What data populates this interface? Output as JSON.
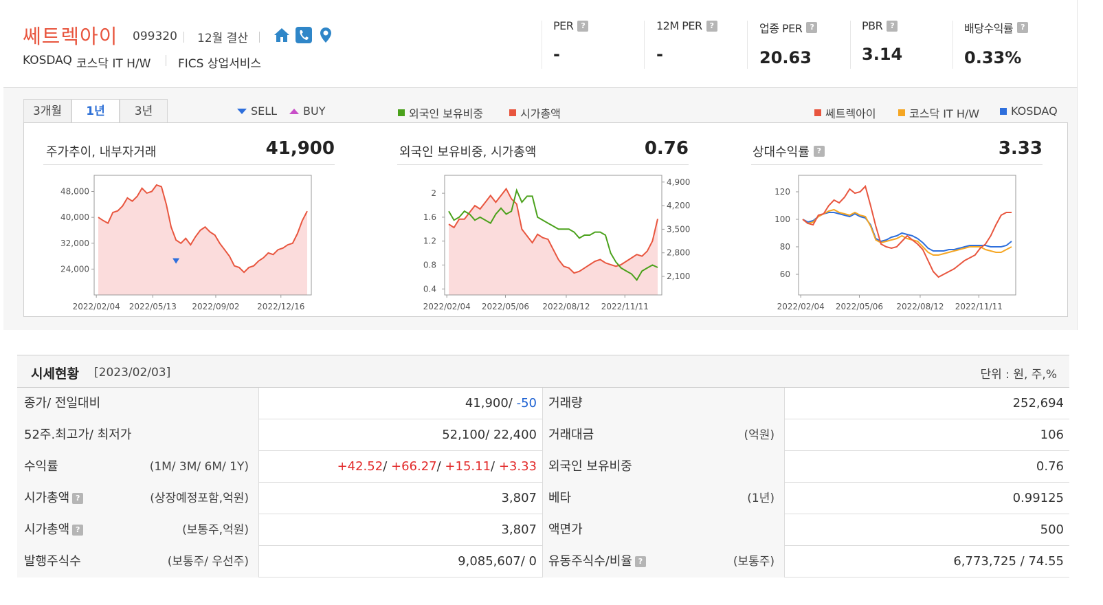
{
  "header": {
    "company_name": "쎄트렉아이",
    "code": "099320",
    "fiscal": "12월 결산",
    "market": "KOSDAQ",
    "sector": "코스닥 IT H/W",
    "fics": "FICS 상업서비스",
    "icons": [
      "home-icon",
      "phone-icon",
      "location-icon"
    ],
    "metrics": [
      {
        "label": "PER",
        "value": "-"
      },
      {
        "label": "12M PER",
        "value": "-"
      },
      {
        "label": "업종 PER",
        "value": "20.63"
      },
      {
        "label": "PBR",
        "value": "3.14"
      },
      {
        "label": "배당수익률",
        "value": "0.33%"
      }
    ]
  },
  "tabs": {
    "t3m": "3개월",
    "t1y": "1년",
    "t3y": "3년",
    "selected": "1년"
  },
  "legends": {
    "sell": "SELL",
    "buy": "BUY",
    "foreign": "외국인 보유비중",
    "mcap": "시가총액",
    "s1": "쎄트렉아이",
    "s2": "코스닥 IT H/W",
    "s3": "KOSDAQ"
  },
  "colors": {
    "red": "#e8553e",
    "green": "#4aa11b",
    "orange": "#f5a623",
    "blue": "#2e6fdc",
    "accent_blue": "#2c6fd6"
  },
  "panels": {
    "price": {
      "title_bold": "주가추이",
      "title_rest": ", 내부자거래",
      "value": "41,900"
    },
    "foreign": {
      "title_bold": "외국인 보유비중",
      "title_rest": ", 시가총액",
      "value": "0.76"
    },
    "relative": {
      "title": "상대수익률",
      "value": "3.33"
    }
  },
  "chart_data": [
    {
      "type": "area",
      "title": "주가추이, 내부자거래",
      "x_ticks": [
        "2022/02/04",
        "2022/05/13",
        "2022/09/02",
        "2022/12/16"
      ],
      "y_ticks": [
        "24,000",
        "32,000",
        "40,000",
        "48,000"
      ],
      "ylim": [
        16000,
        53000
      ],
      "series": [
        {
          "name": "쎄트렉아이",
          "values": [
            40000,
            39000,
            38200,
            41500,
            42000,
            43500,
            46000,
            45000,
            46500,
            49000,
            47500,
            48000,
            50000,
            49500,
            44000,
            37000,
            33000,
            32000,
            33500,
            31500,
            34000,
            36000,
            37000,
            35500,
            34500,
            32000,
            30000,
            28000,
            25000,
            24500,
            23000,
            24500,
            25000,
            26500,
            27500,
            29000,
            28500,
            30000,
            30500,
            31500,
            32000,
            35000,
            39000,
            41900
          ]
        }
      ],
      "markers": [
        {
          "type": "SELL",
          "index": 16,
          "value": 26500
        }
      ]
    },
    {
      "type": "line",
      "title": "외국인 보유비중, 시가총액",
      "x_ticks": [
        "2022/02/04",
        "2022/05/06",
        "2022/08/12",
        "2022/11/11"
      ],
      "y_ticks_left": [
        "0.4",
        "0.8",
        "1.2",
        "1.6",
        "2"
      ],
      "y_ticks_right": [
        "2,100",
        "2,800",
        "3,500",
        "4,200",
        "4,900"
      ],
      "ylim_left": [
        0.3,
        2.3
      ],
      "ylim_right": [
        1550,
        5100
      ],
      "series": [
        {
          "name": "외국인 보유비중",
          "axis": "left",
          "values": [
            1.7,
            1.55,
            1.6,
            1.7,
            1.65,
            1.55,
            1.6,
            1.55,
            1.5,
            1.65,
            1.75,
            1.65,
            1.7,
            2.05,
            1.85,
            1.95,
            1.95,
            1.6,
            1.55,
            1.5,
            1.45,
            1.4,
            1.4,
            1.4,
            1.35,
            1.25,
            1.3,
            1.3,
            1.35,
            1.35,
            1.3,
            1.0,
            0.85,
            0.75,
            0.7,
            0.65,
            0.55,
            0.7,
            0.75,
            0.8,
            0.76
          ]
        },
        {
          "name": "시가총액",
          "axis": "right",
          "values": [
            3650,
            3550,
            3800,
            3800,
            4000,
            4200,
            4100,
            4300,
            4500,
            4300,
            4500,
            4700,
            4400,
            4250,
            3500,
            3300,
            3100,
            3350,
            3250,
            3200,
            2900,
            2600,
            2400,
            2350,
            2200,
            2250,
            2350,
            2450,
            2550,
            2600,
            2500,
            2450,
            2400,
            2450,
            2550,
            2650,
            2750,
            2700,
            2850,
            3150,
            3807
          ]
        }
      ]
    },
    {
      "type": "line",
      "title": "상대수익률",
      "x_ticks": [
        "2022/02/04",
        "2022/05/06",
        "2022/08/12",
        "2022/11/11"
      ],
      "y_ticks": [
        "60",
        "80",
        "100",
        "120"
      ],
      "ylim": [
        45,
        132
      ],
      "series": [
        {
          "name": "쎄트렉아이",
          "values": [
            100,
            97,
            96,
            103,
            104,
            110,
            114,
            112,
            116,
            122,
            119,
            120,
            124,
            110,
            95,
            82,
            80,
            79,
            80,
            84,
            88,
            85,
            82,
            78,
            70,
            62,
            58,
            60,
            62,
            64,
            67,
            70,
            72,
            74,
            79,
            82,
            88,
            96,
            103,
            105,
            105
          ]
        },
        {
          "name": "코스닥 IT H/W",
          "values": [
            100,
            97,
            98,
            102,
            104,
            106,
            107,
            105,
            104,
            103,
            105,
            103,
            102,
            95,
            85,
            83,
            84,
            85,
            86,
            88,
            86,
            85,
            84,
            80,
            76,
            74,
            74,
            75,
            76,
            77,
            78,
            79,
            80,
            80,
            80,
            78,
            77,
            76,
            76,
            78,
            80
          ]
        },
        {
          "name": "KOSDAQ",
          "values": [
            100,
            98,
            99,
            102,
            104,
            105,
            105,
            104,
            103,
            102,
            104,
            102,
            101,
            96,
            86,
            84,
            85,
            87,
            88,
            90,
            89,
            88,
            86,
            83,
            79,
            77,
            77,
            77,
            78,
            78,
            79,
            80,
            81,
            81,
            81,
            81,
            80,
            80,
            80,
            81,
            84
          ]
        }
      ]
    }
  ],
  "table": {
    "title": "시세현황",
    "date": "[2023/02/03]",
    "unit": "단위 : 원, 주,%",
    "rows": [
      {
        "l1": "종가/ 전일대비",
        "s1": "",
        "v1a": "41,900/ ",
        "v1b": "-50",
        "l2": "거래량",
        "s2": "",
        "v2": "252,694"
      },
      {
        "l1": "52주.최고가/ 최저가",
        "s1": "",
        "v1a": "52,100/ 22,400",
        "v1b": "",
        "l2": "거래대금",
        "s2": "(억원)",
        "v2": "106"
      },
      {
        "l1": "수익률",
        "s1": "(1M/ 3M/ 6M/ 1Y)",
        "returns": [
          "+42.52",
          "+66.27",
          "+15.11",
          "+3.33"
        ],
        "l2": "외국인 보유비중",
        "s2": "",
        "v2": "0.76"
      },
      {
        "l1": "시가총액",
        "s1": "(상장예정포함,억원)",
        "v1a": "3,807",
        "v1b": "",
        "l2": "베타",
        "s2": "(1년)",
        "v2": "0.99125"
      },
      {
        "l1": "시가총액",
        "s1": "(보통주,억원)",
        "v1a": "3,807",
        "v1b": "",
        "l2": "액면가",
        "s2": "",
        "v2": "500"
      },
      {
        "l1": "발행주식수",
        "s1": "(보통주/ 우선주)",
        "v1a": "9,085,607/ 0",
        "v1b": "",
        "l2": "유동주식수/비율",
        "s2": "(보통주)",
        "v2": "6,773,725 / 74.55"
      }
    ]
  }
}
